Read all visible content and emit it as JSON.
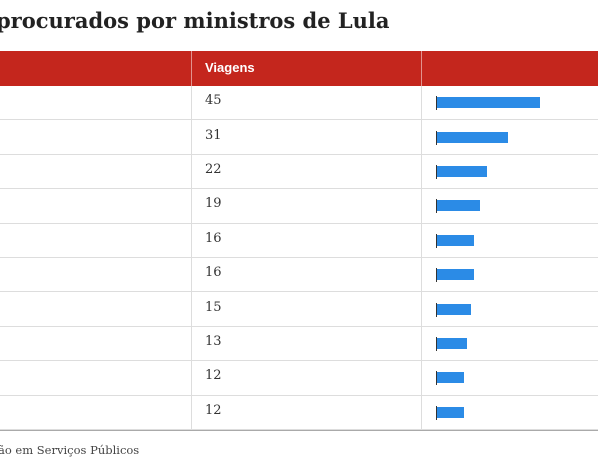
{
  "title": "procurados por ministros de Lula",
  "table": {
    "header": [
      "Viagens"
    ],
    "rows": [
      45,
      31,
      22,
      19,
      16,
      16,
      15,
      13,
      12,
      12
    ]
  },
  "source": "ão em Serviços Públicos"
}
